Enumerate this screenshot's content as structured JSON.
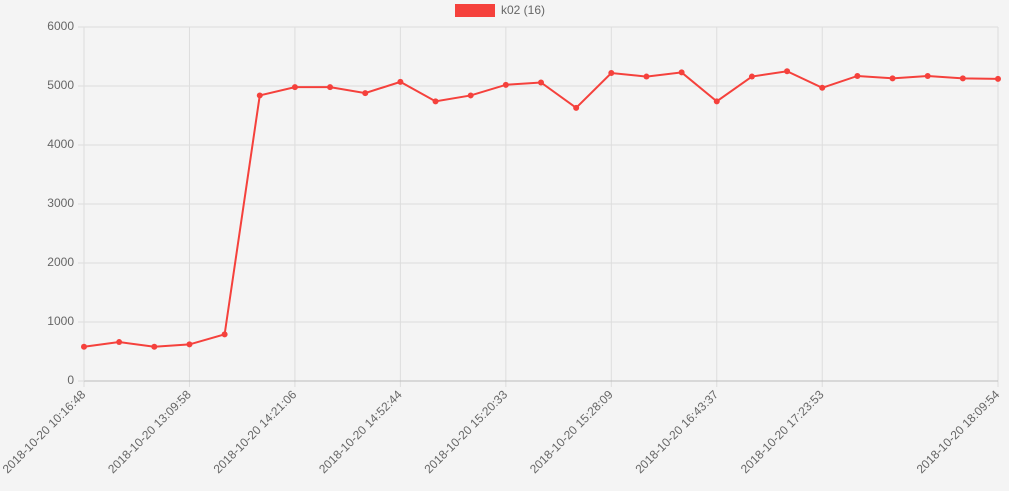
{
  "chart_data": {
    "type": "line",
    "categories": [
      "2018-10-20 10:16:48",
      null,
      null,
      "2018-10-20 13:09:58",
      null,
      null,
      "2018-10-20 14:21:06",
      null,
      null,
      "2018-10-20 14:52:44",
      null,
      null,
      "2018-10-20 15:20:33",
      null,
      null,
      "2018-10-20 15:28:09",
      null,
      null,
      "2018-10-20 16:43:37",
      null,
      null,
      "2018-10-20 17:23:53",
      null,
      null,
      null,
      null,
      "2018-10-20 18:09:54"
    ],
    "series": [
      {
        "name": "k02 (16)",
        "color": "#f5413c",
        "values": [
          580,
          660,
          580,
          620,
          790,
          4840,
          4980,
          4980,
          4880,
          5070,
          4740,
          4840,
          5020,
          5060,
          4630,
          5220,
          5160,
          5230,
          4740,
          5160,
          5250,
          4970,
          5170,
          5130,
          5170,
          5130,
          5120
        ]
      }
    ],
    "ylim": [
      0,
      6000
    ],
    "yticks": [
      0,
      1000,
      2000,
      3000,
      4000,
      5000,
      6000
    ],
    "grid": true,
    "legend": "top"
  }
}
